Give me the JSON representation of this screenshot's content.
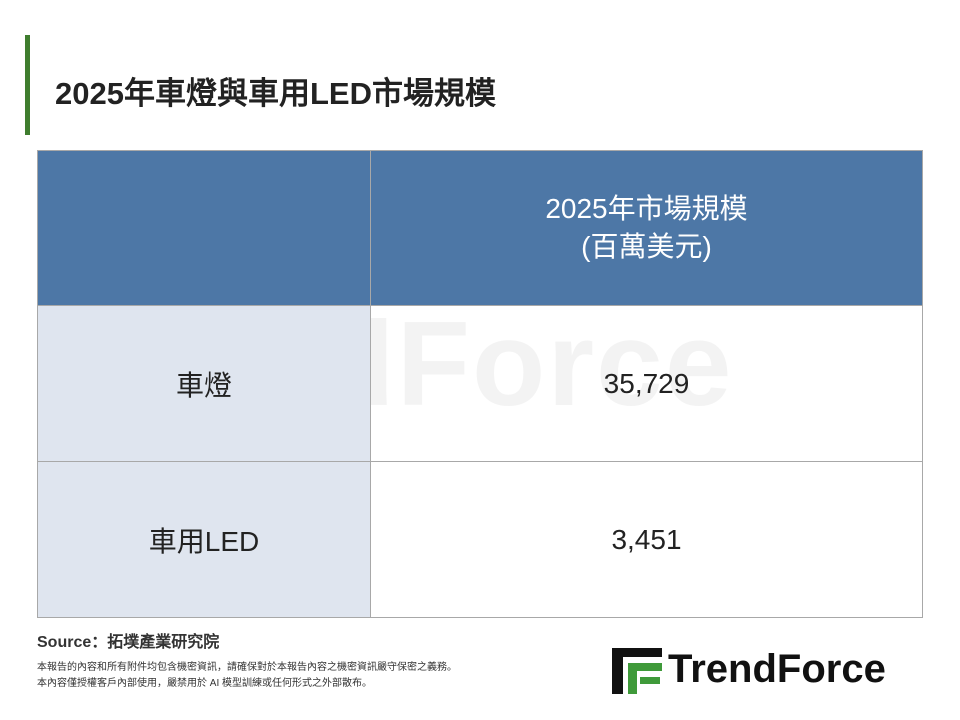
{
  "header": {
    "title": "2025年車燈與車用LED市場規模"
  },
  "table": {
    "header": [
      "2025年市場規模",
      "(百萬美元)"
    ],
    "rows": [
      [
        "車燈",
        "35,729"
      ],
      [
        "車用LED",
        "3,451"
      ]
    ]
  },
  "watermark": "TrendForce",
  "footer": {
    "source": "Source：拓墣產業研究院",
    "notes": [
      "本報告的內容和所有附件均包含機密資訊，請確保對於本報告內容之機密資訊嚴守保密之義務。",
      "本內容僅授權客戶內部使用，嚴禁用於 AI 模型訓練或任何形式之外部散布。"
    ],
    "logo": "TrendForce"
  }
}
